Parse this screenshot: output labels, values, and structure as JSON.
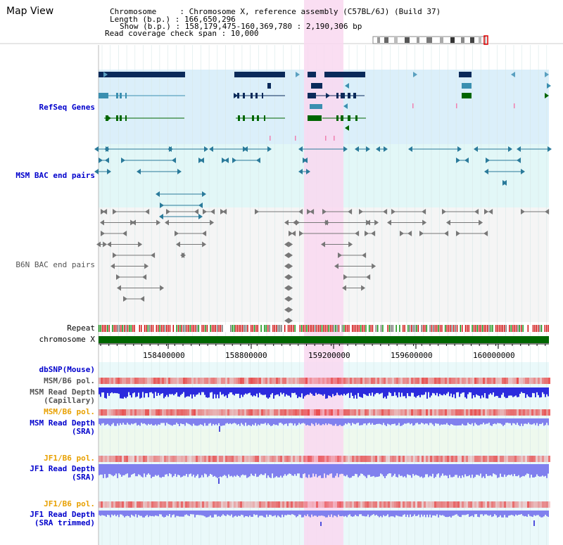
{
  "view": {
    "title": "Map View",
    "info_lines": [
      "Chromosome     : Chromosome X, reference assembly (C57BL/6J) (Build 37)",
      "Length (b.p.) : 166,650,296",
      "Show (b.p.) : 158,179,475-160,369,780 : 2,190,306 bp",
      "Read coverage check span : 10,000"
    ]
  },
  "tracks": {
    "refseq": "RefSeq Genes",
    "msm_bac": "MSM BAC end pairs",
    "b6n_bac": "B6N BAC end pairs",
    "repeat": "Repeat",
    "chromosome": "chromosome X",
    "dbsnp": "dbSNP(Mouse)",
    "msm_b6_pol_1": "MSM/B6 pol.",
    "msm_depth_cap": [
      "MSM Read Depth",
      "(Capillary)"
    ],
    "msm_b6_pol_2": "MSM/B6 pol.",
    "msm_depth_sra": [
      "MSM Read Depth",
      "(SRA)"
    ],
    "jf1_b6_pol_1": "JF1/B6 pol.",
    "jf1_depth_sra": [
      "JF1 Read Depth",
      "(SRA)"
    ],
    "jf1_b6_pol_2": "JF1/B6 pol.",
    "jf1_depth_trim": [
      "JF1 Read Depth",
      "(SRA trimmed)"
    ]
  },
  "axis": {
    "ticks": [
      158400000,
      158800000,
      159200000,
      159600000,
      160000000
    ],
    "tick_labels": [
      "158400000",
      "158800000",
      "159200000",
      "159600000",
      "160000000"
    ]
  },
  "colors": {
    "label_blue": "#0000cc",
    "label_orange": "#e8a000",
    "refseq_bg": "#dbeffa",
    "msm_bg": "#e2f7f7",
    "b6n_bg": "#f5f5f5",
    "highlight": "#f9d8f0",
    "chrom_green": "#006600",
    "depth_blue": "#2b2bdd",
    "depth_light": "#8080ee"
  }
}
